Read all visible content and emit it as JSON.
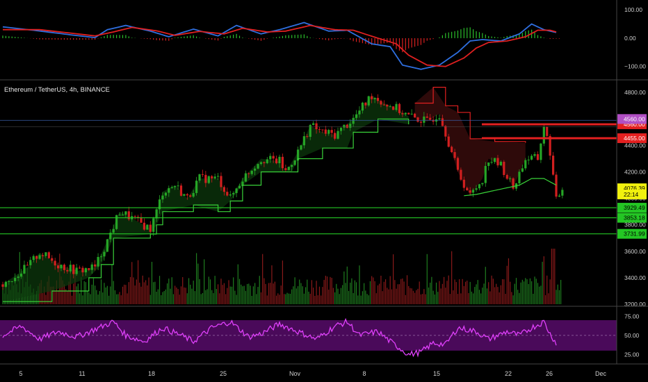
{
  "symbol": {
    "title": "Ethereum / TetherUS, 4h, BINANCE"
  },
  "colors": {
    "background": "#000000",
    "up": "#26a526",
    "down": "#d11f1f",
    "stop_line_up": "#39d339",
    "stop_line_down": "#e32020",
    "rsi_line": "#e040fb",
    "rsi_band": "#4a0a5a",
    "macd_line": "#2f6fe0",
    "signal_line": "#e02020",
    "hist_pos": "#2bbf2b",
    "hist_neg": "#d82020",
    "axis_text": "#cfcfcf",
    "separator": "#444444"
  },
  "x_axis": {
    "labels": [
      "5",
      "11",
      "18",
      "25",
      "Nov",
      "8",
      "15",
      "22",
      "26",
      "Dec"
    ]
  },
  "chart_data": [
    {
      "type": "bar",
      "panel": "macd",
      "y_ticks": [
        "100.00",
        "0.00",
        "−100.00"
      ],
      "ylim": [
        -135,
        125
      ],
      "series": [],
      "histogram_last": -18,
      "macd_points": [
        [
          0,
          40
        ],
        [
          5,
          28
        ],
        [
          11,
          12
        ],
        [
          15,
          2
        ],
        [
          17,
          30
        ],
        [
          20,
          45
        ],
        [
          24,
          25
        ],
        [
          27,
          5
        ],
        [
          31,
          32
        ],
        [
          35,
          8
        ],
        [
          38,
          45
        ],
        [
          42,
          15
        ],
        [
          45,
          30
        ],
        [
          49,
          55
        ],
        [
          53,
          25
        ],
        [
          56,
          28
        ],
        [
          60,
          -20
        ],
        [
          63,
          -30
        ],
        [
          65,
          -95
        ],
        [
          68,
          -110
        ],
        [
          71,
          -95
        ],
        [
          74,
          -50
        ],
        [
          76,
          -10
        ],
        [
          78,
          -5
        ],
        [
          81,
          -10
        ],
        [
          84,
          15
        ],
        [
          86,
          50
        ],
        [
          88,
          30
        ],
        [
          90,
          20
        ]
      ],
      "signal_points": [
        [
          0,
          30
        ],
        [
          6,
          30
        ],
        [
          11,
          18
        ],
        [
          15,
          8
        ],
        [
          18,
          22
        ],
        [
          21,
          38
        ],
        [
          25,
          26
        ],
        [
          28,
          10
        ],
        [
          32,
          24
        ],
        [
          36,
          15
        ],
        [
          39,
          35
        ],
        [
          43,
          22
        ],
        [
          46,
          25
        ],
        [
          50,
          45
        ],
        [
          54,
          30
        ],
        [
          57,
          28
        ],
        [
          61,
          0
        ],
        [
          64,
          -20
        ],
        [
          66,
          -60
        ],
        [
          69,
          -95
        ],
        [
          72,
          -100
        ],
        [
          75,
          -70
        ],
        [
          77,
          -35
        ],
        [
          79,
          -15
        ],
        [
          82,
          -10
        ],
        [
          85,
          5
        ],
        [
          87,
          28
        ],
        [
          89,
          28
        ],
        [
          90,
          22
        ]
      ]
    },
    {
      "type": "line",
      "panel": "price",
      "y_ticks": [
        "4800.00",
        "4600.00",
        "4400.00",
        "4200.00",
        "4000.00",
        "3800.00",
        "3600.00",
        "3400.00",
        "3200.00"
      ],
      "ylim": [
        3200,
        4880
      ],
      "price_points": [
        [
          0,
          3350
        ],
        [
          4,
          3480
        ],
        [
          6,
          3590
        ],
        [
          9,
          3500
        ],
        [
          12,
          3450
        ],
        [
          15,
          3480
        ],
        [
          17,
          3680
        ],
        [
          19,
          3900
        ],
        [
          21,
          3850
        ],
        [
          24,
          3770
        ],
        [
          25,
          3900
        ],
        [
          26,
          4050
        ],
        [
          28,
          4100
        ],
        [
          30,
          4000
        ],
        [
          32,
          4150
        ],
        [
          35,
          4150
        ],
        [
          37,
          4000
        ],
        [
          39,
          4150
        ],
        [
          42,
          4300
        ],
        [
          45,
          4280
        ],
        [
          46,
          4200
        ],
        [
          48,
          4350
        ],
        [
          50,
          4550
        ],
        [
          52,
          4500
        ],
        [
          54,
          4480
        ],
        [
          57,
          4600
        ],
        [
          60,
          4780
        ],
        [
          62,
          4720
        ],
        [
          64,
          4680
        ],
        [
          66,
          4620
        ],
        [
          69,
          4580
        ],
        [
          71,
          4640
        ],
        [
          72,
          4500
        ],
        [
          74,
          4200
        ],
        [
          76,
          4020
        ],
        [
          78,
          4150
        ],
        [
          79,
          4300
        ],
        [
          81,
          4250
        ],
        [
          83,
          4080
        ],
        [
          85,
          4300
        ],
        [
          87,
          4300
        ],
        [
          88,
          4550
        ],
        [
          89,
          4350
        ],
        [
          90,
          3980
        ],
        [
          91,
          4080
        ]
      ],
      "stop_up_points": [
        [
          0,
          3220
        ],
        [
          8,
          3300
        ],
        [
          14,
          3400
        ],
        [
          16,
          3500
        ],
        [
          18,
          3700
        ],
        [
          24,
          3730
        ],
        [
          25,
          3800
        ],
        [
          26,
          3900
        ],
        [
          31,
          3950
        ],
        [
          35,
          3900
        ],
        [
          37,
          3980
        ],
        [
          39,
          4100
        ],
        [
          42,
          4200
        ],
        [
          47,
          4200
        ],
        [
          48,
          4300
        ],
        [
          52,
          4380
        ],
        [
          56,
          4380
        ],
        [
          57,
          4500
        ],
        [
          61,
          4600
        ],
        [
          66,
          4560
        ]
      ],
      "stop_down_points": [
        [
          67,
          4720
        ],
        [
          70,
          4840
        ],
        [
          72,
          4700
        ],
        [
          74,
          4650
        ],
        [
          76,
          4450
        ],
        [
          80,
          4430
        ],
        [
          85,
          4420
        ]
      ],
      "stop_up_points_2": [
        [
          75,
          4020
        ],
        [
          77,
          4030
        ],
        [
          80,
          4060
        ],
        [
          82,
          4080
        ],
        [
          84,
          4100
        ],
        [
          86,
          4150
        ],
        [
          88,
          4150
        ],
        [
          90,
          4100
        ]
      ],
      "horizontal_levels": [
        {
          "label": "4560.00",
          "color": "#e32020"
        },
        {
          "label": "4455.00",
          "color": "#e32020"
        },
        {
          "label": "3929.49",
          "color": "#24c624"
        },
        {
          "label": "3853.18",
          "color": "#24c624"
        },
        {
          "label": "3731.99",
          "color": "#24c624"
        }
      ],
      "price_tags": [
        {
          "label": "4560.00",
          "bg": "#b14fc4"
        },
        {
          "label": "4076.39",
          "bg": "#f1f10e"
        },
        {
          "label": "22:14",
          "bg": "#f1f10e"
        }
      ],
      "last_price": 4076.39
    },
    {
      "type": "line",
      "panel": "rsi",
      "y_ticks": [
        "75.00",
        "50.00",
        "25.00"
      ],
      "ylim": [
        18,
        80
      ],
      "band": [
        30,
        70
      ],
      "rsi_points": [
        [
          0,
          50
        ],
        [
          3,
          62
        ],
        [
          6,
          45
        ],
        [
          9,
          55
        ],
        [
          12,
          48
        ],
        [
          15,
          58
        ],
        [
          18,
          68
        ],
        [
          20,
          50
        ],
        [
          23,
          42
        ],
        [
          26,
          60
        ],
        [
          29,
          50
        ],
        [
          31,
          42
        ],
        [
          34,
          60
        ],
        [
          37,
          68
        ],
        [
          40,
          48
        ],
        [
          42,
          52
        ],
        [
          45,
          65
        ],
        [
          48,
          55
        ],
        [
          51,
          45
        ],
        [
          54,
          62
        ],
        [
          56,
          68
        ],
        [
          58,
          50
        ],
        [
          61,
          55
        ],
        [
          63,
          42
        ],
        [
          66,
          25
        ],
        [
          68,
          28
        ],
        [
          70,
          40
        ],
        [
          72,
          38
        ],
        [
          74,
          60
        ],
        [
          77,
          55
        ],
        [
          79,
          45
        ],
        [
          82,
          55
        ],
        [
          84,
          50
        ],
        [
          86,
          60
        ],
        [
          88,
          68
        ],
        [
          89,
          52
        ],
        [
          90,
          40
        ]
      ]
    }
  ]
}
